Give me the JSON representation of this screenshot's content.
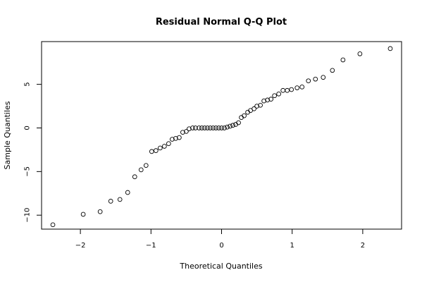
{
  "chart_data": {
    "type": "scatter",
    "title": "Residual Normal Q-Q Plot",
    "xlabel": "Theoretical Quantiles",
    "ylabel": "Sample Quantiles",
    "xlim": [
      -2.55,
      2.55
    ],
    "ylim": [
      -11.6,
      9.9
    ],
    "x_ticks": [
      -2,
      -1,
      0,
      1,
      2
    ],
    "y_ticks": [
      -10,
      -5,
      0,
      5
    ],
    "grid": false,
    "points": [
      [
        -2.39,
        -11.1
      ],
      [
        -1.96,
        -9.9
      ],
      [
        -1.72,
        -9.6
      ],
      [
        -1.57,
        -8.4
      ],
      [
        -1.44,
        -8.2
      ],
      [
        -1.33,
        -7.4
      ],
      [
        -1.23,
        -5.6
      ],
      [
        -1.14,
        -4.8
      ],
      [
        -1.07,
        -4.3
      ],
      [
        -0.99,
        -2.7
      ],
      [
        -0.93,
        -2.6
      ],
      [
        -0.87,
        -2.3
      ],
      [
        -0.81,
        -2.1
      ],
      [
        -0.75,
        -1.8
      ],
      [
        -0.7,
        -1.3
      ],
      [
        -0.65,
        -1.2
      ],
      [
        -0.6,
        -1.1
      ],
      [
        -0.55,
        -0.5
      ],
      [
        -0.5,
        -0.4
      ],
      [
        -0.46,
        -0.1
      ],
      [
        -0.41,
        0.0
      ],
      [
        -0.37,
        0.0
      ],
      [
        -0.32,
        0.0
      ],
      [
        -0.28,
        0.0
      ],
      [
        -0.24,
        0.0
      ],
      [
        -0.2,
        0.0
      ],
      [
        -0.16,
        0.0
      ],
      [
        -0.12,
        0.0
      ],
      [
        -0.08,
        0.0
      ],
      [
        -0.04,
        0.0
      ],
      [
        0.0,
        0.0
      ],
      [
        0.04,
        0.0
      ],
      [
        0.08,
        0.1
      ],
      [
        0.12,
        0.2
      ],
      [
        0.16,
        0.3
      ],
      [
        0.2,
        0.4
      ],
      [
        0.24,
        0.6
      ],
      [
        0.28,
        1.2
      ],
      [
        0.32,
        1.4
      ],
      [
        0.37,
        1.8
      ],
      [
        0.41,
        2.0
      ],
      [
        0.46,
        2.2
      ],
      [
        0.5,
        2.5
      ],
      [
        0.55,
        2.6
      ],
      [
        0.6,
        3.1
      ],
      [
        0.65,
        3.2
      ],
      [
        0.7,
        3.3
      ],
      [
        0.75,
        3.7
      ],
      [
        0.81,
        3.9
      ],
      [
        0.87,
        4.3
      ],
      [
        0.93,
        4.3
      ],
      [
        0.99,
        4.4
      ],
      [
        1.07,
        4.6
      ],
      [
        1.14,
        4.7
      ],
      [
        1.23,
        5.4
      ],
      [
        1.33,
        5.6
      ],
      [
        1.44,
        5.8
      ],
      [
        1.57,
        6.6
      ],
      [
        1.72,
        7.8
      ],
      [
        1.96,
        8.5
      ],
      [
        2.39,
        9.1
      ]
    ]
  }
}
